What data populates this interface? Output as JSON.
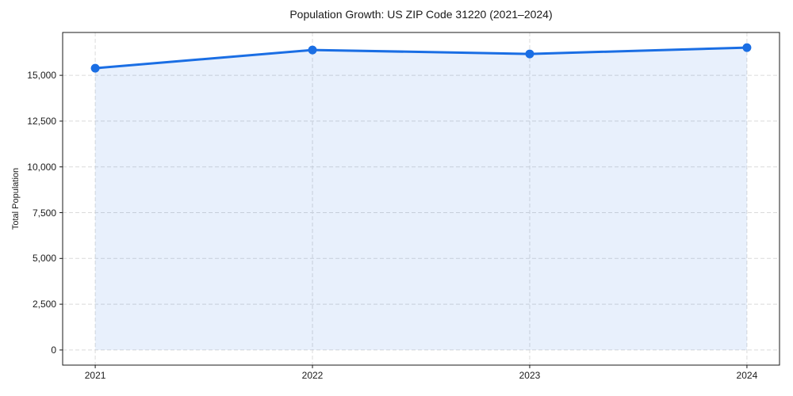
{
  "chart_data": {
    "type": "area",
    "title": "Population Growth: US ZIP Code 31220 (2021–2024)",
    "xlabel": "",
    "ylabel": "Total Population",
    "x": [
      2021,
      2022,
      2023,
      2024
    ],
    "xtick_labels": [
      "2021",
      "2022",
      "2023",
      "2024"
    ],
    "series": [
      {
        "name": "Total Population",
        "values": [
          15390,
          16385,
          16170,
          16515
        ]
      }
    ],
    "yticks": [
      0,
      2500,
      5000,
      7500,
      10000,
      12500,
      15000
    ],
    "ytick_labels": [
      "0",
      "2,500",
      "5,000",
      "7,500",
      "10,000",
      "12,500",
      "15,000"
    ],
    "xlim": [
      2020.85,
      2024.15
    ],
    "ylim": [
      -826,
      17341
    ],
    "grid": true,
    "grid_style": "dashed",
    "legend": "none",
    "area_baseline": 0,
    "marker": "circle",
    "colors": {
      "line": "#1a6ee4",
      "marker": "#1a6ee4",
      "area_fill": "rgba(26,110,228,0.10)",
      "grid": "#dadada",
      "spine": "#1a1a1a",
      "text": "#1a1a1a",
      "background": "#ffffff"
    }
  }
}
